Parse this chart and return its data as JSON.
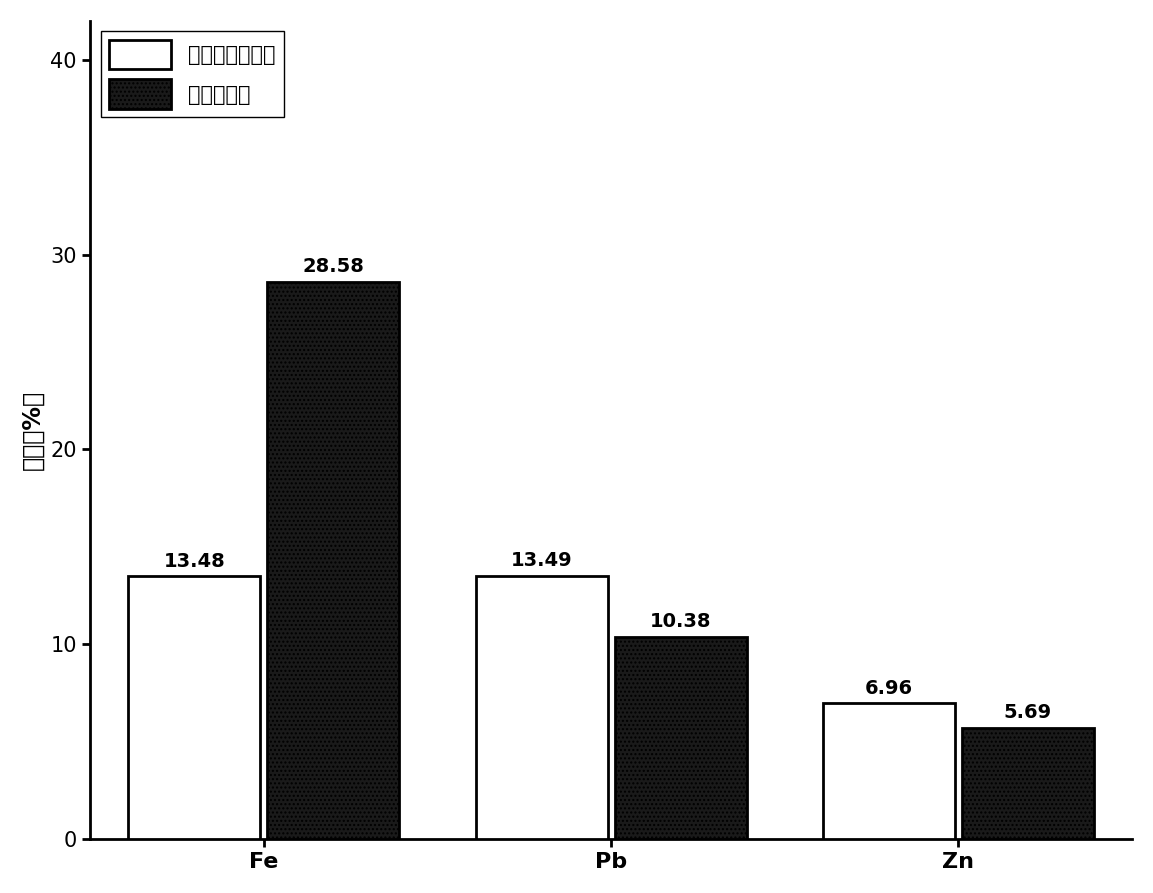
{
  "categories": [
    "Fe",
    "Pb",
    "Zn"
  ],
  "series1_label": "本发明浮选药剂",
  "series2_label": "乙基钠黄药",
  "series1_values": [
    13.48,
    13.49,
    6.96
  ],
  "series2_values": [
    28.58,
    10.38,
    5.69
  ],
  "ylabel": "品位（%）",
  "ylim": [
    0,
    42
  ],
  "yticks": [
    0,
    10,
    20,
    30,
    40
  ],
  "bar_width": 0.38,
  "background_color": "#ffffff",
  "series1_color": "#ffffff",
  "series1_edgecolor": "#000000",
  "series2_color": "#1a1a1a",
  "series2_edgecolor": "#000000",
  "label_fontsize": 16,
  "tick_fontsize": 15,
  "ylabel_fontsize": 17,
  "legend_fontsize": 15,
  "annotation_fontsize": 14
}
